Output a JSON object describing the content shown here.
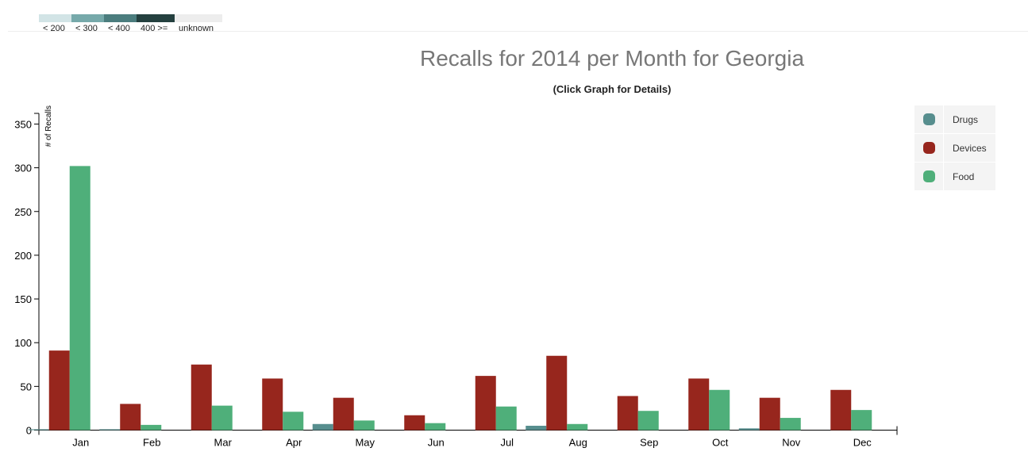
{
  "scale_key": {
    "swatches": [
      {
        "label": "< 200",
        "color": "#d2e4e6"
      },
      {
        "label": "< 300",
        "color": "#76a9aa"
      },
      {
        "label": "< 400",
        "color": "#4b7d7e"
      },
      {
        "label": "400 >=",
        "color": "#24403f"
      },
      {
        "label": "unknown",
        "color": "#ededed"
      }
    ]
  },
  "legend": [
    {
      "label": "Drugs",
      "color": "#578e8e"
    },
    {
      "label": "Devices",
      "color": "#97261d"
    },
    {
      "label": "Food",
      "color": "#4faf7a"
    }
  ],
  "chart_data": {
    "type": "bar",
    "title": "Recalls for 2014 per Month for Georgia",
    "subtitle": "(Click Graph for Details)",
    "ylabel": "# of Recalls",
    "xlabel": "",
    "ylim": [
      0,
      360
    ],
    "yticks": [
      0,
      50,
      100,
      150,
      200,
      250,
      300,
      350
    ],
    "categories": [
      "Jan",
      "Feb",
      "Mar",
      "Apr",
      "May",
      "Jun",
      "Jul",
      "Aug",
      "Sep",
      "Oct",
      "Nov",
      "Dec"
    ],
    "series": [
      {
        "name": "Drugs",
        "color": "#578e8e",
        "values": [
          1,
          1,
          0,
          0,
          7,
          0,
          0,
          5,
          0,
          0,
          2,
          0
        ]
      },
      {
        "name": "Devices",
        "color": "#97261d",
        "values": [
          91,
          30,
          75,
          59,
          37,
          17,
          62,
          85,
          39,
          59,
          37,
          46
        ]
      },
      {
        "name": "Food",
        "color": "#4faf7a",
        "values": [
          302,
          6,
          28,
          21,
          11,
          8,
          27,
          7,
          22,
          46,
          14,
          23
        ]
      }
    ],
    "grid": false,
    "legend_position": "right"
  }
}
